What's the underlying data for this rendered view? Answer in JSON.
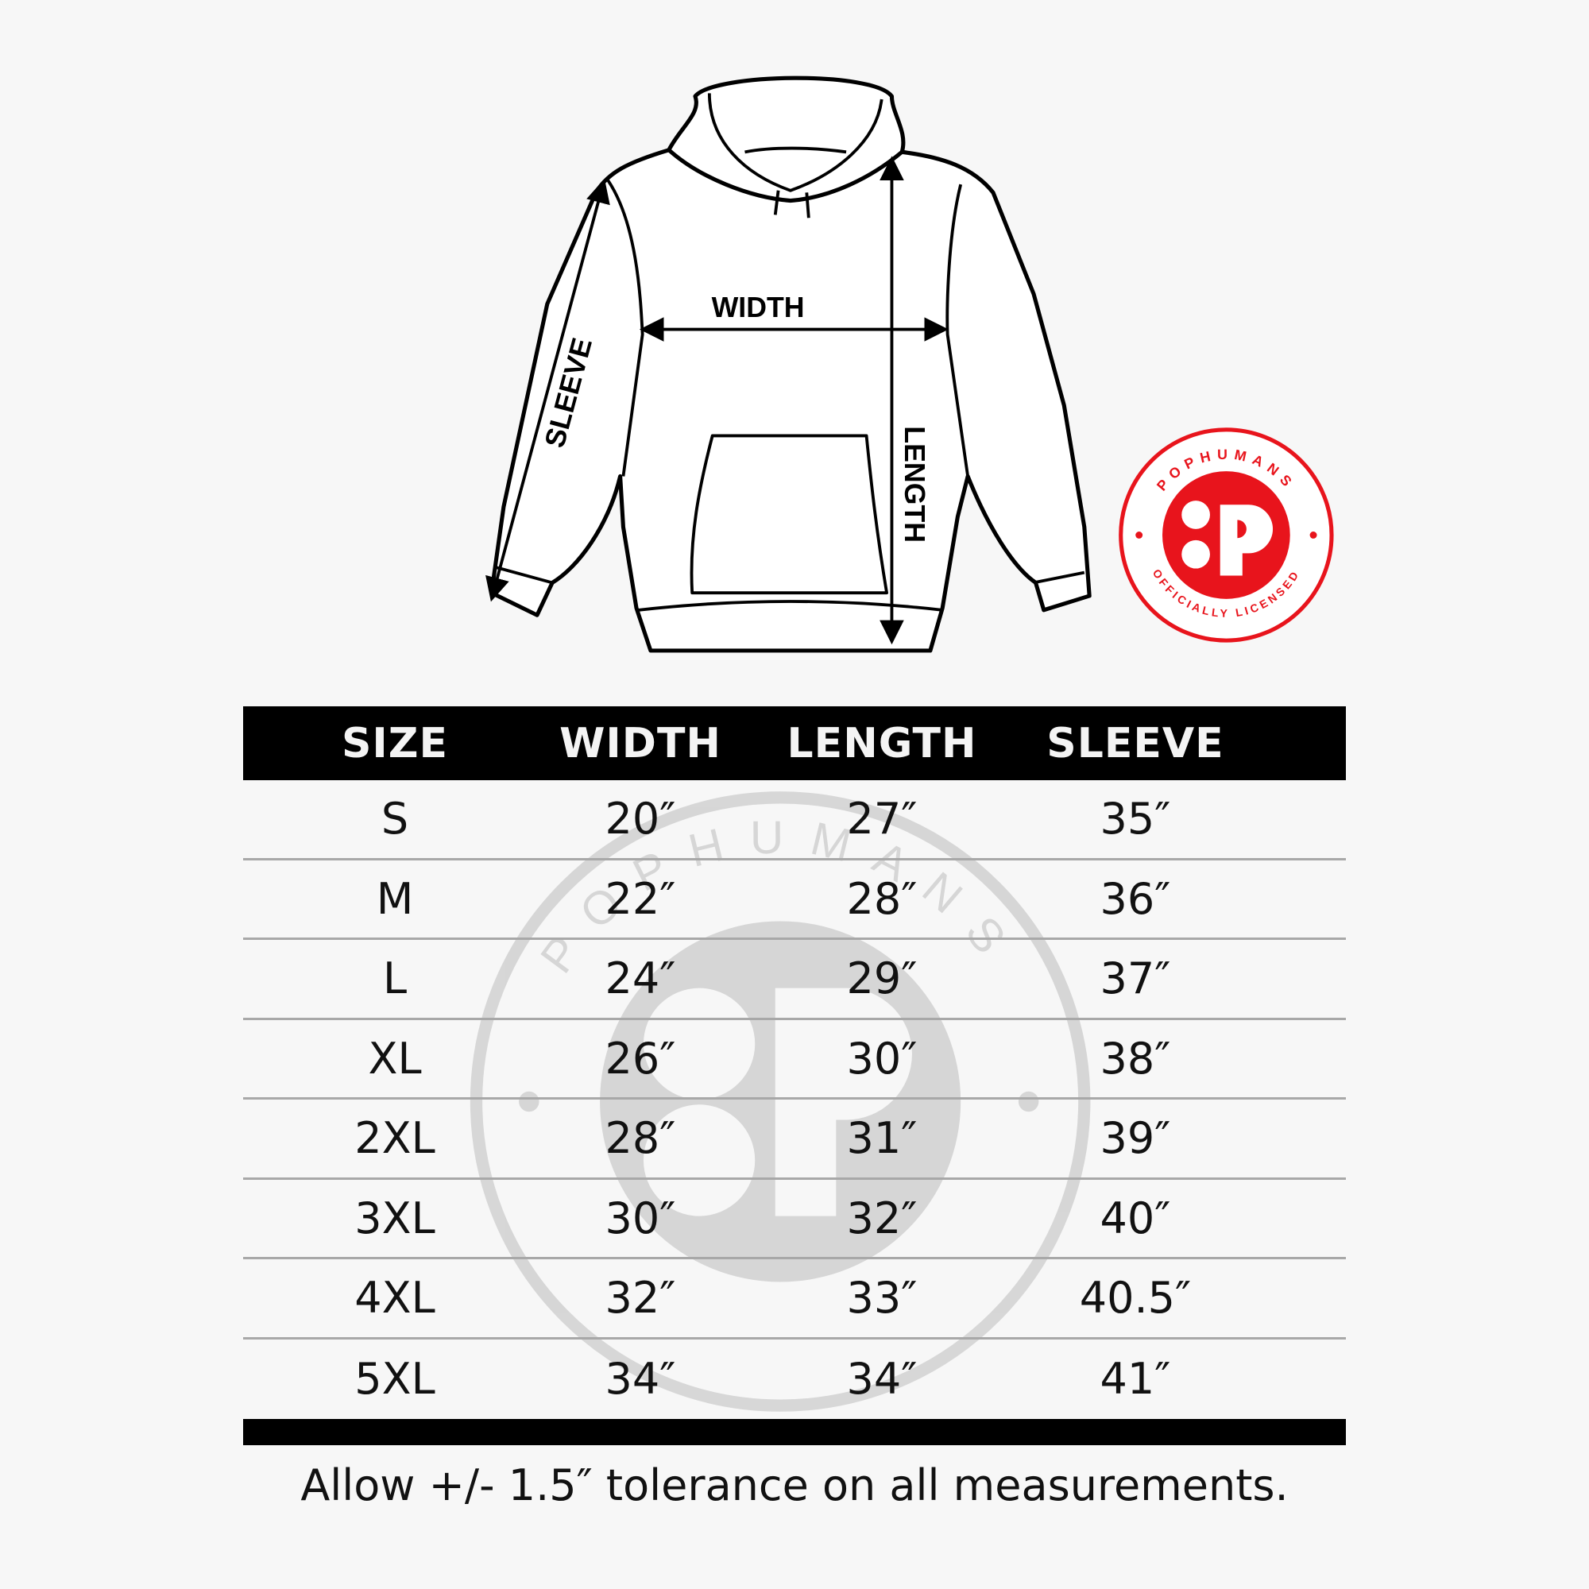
{
  "diagram": {
    "labels": {
      "width": "WIDTH",
      "length": "LENGTH",
      "sleeve": "SLEEVE"
    }
  },
  "logo": {
    "brand": "POPHUMANS",
    "tagline": "OFFICIALLY LICENSED",
    "color": "#e8141c"
  },
  "table": {
    "headers": [
      "SIZE",
      "WIDTH",
      "LENGTH",
      "SLEEVE"
    ],
    "rows": [
      [
        "S",
        "20″",
        "27″",
        "35″"
      ],
      [
        "M",
        "22″",
        "28″",
        "36″"
      ],
      [
        "L",
        "24″",
        "29″",
        "37″"
      ],
      [
        "XL",
        "26″",
        "30″",
        "38″"
      ],
      [
        "2XL",
        "28″",
        "31″",
        "39″"
      ],
      [
        "3XL",
        "30″",
        "32″",
        "40″"
      ],
      [
        "4XL",
        "32″",
        "33″",
        "40.5″"
      ],
      [
        "5XL",
        "34″",
        "34″",
        "41″"
      ]
    ]
  },
  "footer": {
    "note": "Allow +/- 1.5″ tolerance on all measurements."
  }
}
